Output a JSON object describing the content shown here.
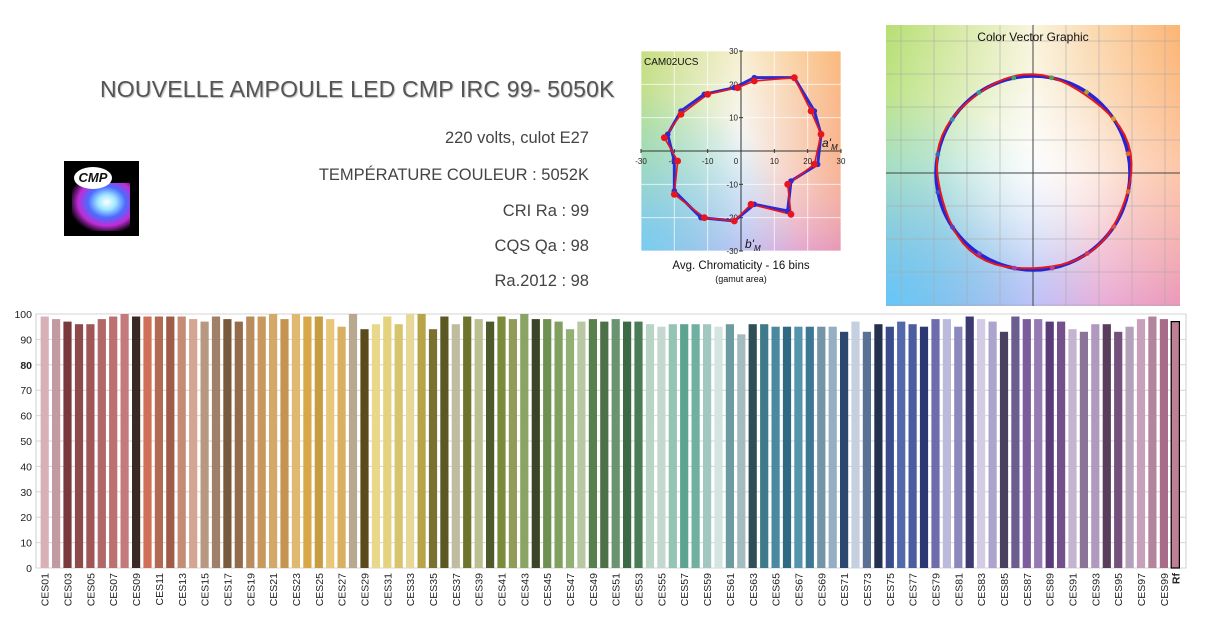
{
  "header": {
    "title": "NOUVELLE AMPOULE LED CMP IRC 99- 5050K",
    "logo_text": "CMP",
    "specs": [
      "220 volts, culot E27",
      "TEMPÉRATURE COULEUR : 5052K",
      "CRI Ra : 99",
      "CQS  Qa : 98",
      "Ra.2012 : 98"
    ]
  },
  "chromaticity": {
    "corner_label": "CAM02UCS",
    "caption": "Avg. Chromaticity - 16 bins",
    "subcaption": "(gamut area)",
    "a_label": "a'",
    "a_sub": "M",
    "b_label": "b'",
    "b_sub": "M",
    "xticks": [
      -30,
      -20,
      -10,
      0,
      10,
      20,
      30
    ],
    "yticks": [
      -30,
      -20,
      -10,
      10,
      20,
      30
    ],
    "range": [
      -30,
      30
    ],
    "test_color": "#e8141e",
    "reference_color": "#2b2bd0"
  },
  "vector": {
    "title": "Color Vector Graphic"
  },
  "chart_data": [
    {
      "type": "line",
      "title": "",
      "xlabel": "a'M",
      "ylabel": "b'M",
      "xlim": [
        -30,
        30
      ],
      "ylim": [
        -30,
        30
      ],
      "grid": true,
      "series": [
        {
          "x": [
            16,
            22,
            24,
            23,
            15,
            14,
            4,
            -2,
            -12,
            -20,
            -20,
            -22,
            -18,
            -11,
            -2,
            4
          ],
          "y": [
            22,
            12,
            5,
            -4,
            -9,
            -18,
            -16,
            -21,
            -20,
            -12,
            -3,
            5,
            12,
            17,
            19,
            22
          ]
        },
        {
          "x": [
            16,
            21,
            24,
            22,
            14,
            15,
            3,
            -2,
            -11,
            -20,
            -19,
            -23,
            -18,
            -10,
            -1,
            4
          ],
          "y": [
            22,
            12,
            5,
            -4,
            -10,
            -19,
            -16,
            -21,
            -20,
            -13,
            -3,
            4,
            11,
            17,
            19,
            21
          ]
        }
      ]
    },
    {
      "type": "bar",
      "ylim": [
        0,
        100
      ],
      "yticks": [
        0,
        10,
        20,
        30,
        40,
        50,
        60,
        70,
        80,
        90,
        100
      ],
      "grid": true,
      "categories": [
        "CES01",
        "CES02",
        "CES03",
        "CES04",
        "CES05",
        "CES06",
        "CES07",
        "CES08",
        "CES09",
        "CES10",
        "CES11",
        "CES12",
        "CES13",
        "CES14",
        "CES15",
        "CES16",
        "CES17",
        "CES18",
        "CES19",
        "CES20",
        "CES21",
        "CES22",
        "CES23",
        "CES24",
        "CES25",
        "CES26",
        "CES27",
        "CES28",
        "CES29",
        "CES30",
        "CES31",
        "CES32",
        "CES33",
        "CES34",
        "CES35",
        "CES36",
        "CES37",
        "CES38",
        "CES39",
        "CES40",
        "CES41",
        "CES42",
        "CES43",
        "CES44",
        "CES45",
        "CES46",
        "CES47",
        "CES48",
        "CES49",
        "CES50",
        "CES51",
        "CES52",
        "CES53",
        "CES54",
        "CES55",
        "CES56",
        "CES57",
        "CES58",
        "CES59",
        "CES60",
        "CES61",
        "CES62",
        "CES63",
        "CES64",
        "CES65",
        "CES66",
        "CES67",
        "CES68",
        "CES69",
        "CES70",
        "CES71",
        "CES72",
        "CES73",
        "CES74",
        "CES75",
        "CES76",
        "CES77",
        "CES78",
        "CES79",
        "CES80",
        "CES81",
        "CES82",
        "CES83",
        "CES84",
        "CES85",
        "CES86",
        "CES87",
        "CES88",
        "CES89",
        "CES90",
        "CES91",
        "CES92",
        "CES93",
        "CES94",
        "CES95",
        "CES96",
        "CES97",
        "CES98",
        "CES99",
        "Rf"
      ],
      "visible_tick_labels": [
        "CES01",
        "CES03",
        "CES05",
        "CES07",
        "CES09",
        "CES11",
        "CES13",
        "CES15",
        "CES17",
        "CES19",
        "CES21",
        "CES23",
        "CES25",
        "CES27",
        "CES29",
        "CES31",
        "CES33",
        "CES35",
        "CES37",
        "CES39",
        "CES41",
        "CES43",
        "CES45",
        "CES47",
        "CES49",
        "CES51",
        "CES53",
        "CES55",
        "CES57",
        "CES59",
        "CES61",
        "CES63",
        "CES65",
        "CES67",
        "CES69",
        "CES71",
        "CES73",
        "CES75",
        "CES77",
        "CES79",
        "CES81",
        "CES83",
        "CES85",
        "CES87",
        "CES89",
        "CES91",
        "CES93",
        "CES95",
        "CES97",
        "CES99",
        "Rf"
      ],
      "values": [
        99,
        98,
        97,
        96,
        96,
        98,
        99,
        100,
        99,
        99,
        99,
        99,
        99,
        98,
        97,
        99,
        98,
        97,
        99,
        99,
        100,
        98,
        100,
        99,
        99,
        98,
        95,
        100,
        94,
        96,
        99,
        96,
        100,
        100,
        94,
        99,
        96,
        99,
        98,
        97,
        99,
        98,
        100,
        98,
        98,
        97,
        94,
        97,
        98,
        97,
        98,
        97,
        97,
        96,
        95,
        96,
        96,
        96,
        96,
        95,
        96,
        92,
        96,
        96,
        95,
        95,
        95,
        95,
        95,
        95,
        93,
        97,
        93,
        96,
        95,
        97,
        96,
        95,
        98,
        98,
        95,
        99,
        98,
        97,
        93,
        99,
        98,
        98,
        97,
        97,
        94,
        93,
        96,
        96,
        93,
        95,
        98,
        99,
        98,
        97
      ],
      "colors": [
        "#d8b0b8",
        "#c49aa2",
        "#7a3a3c",
        "#8e4a4a",
        "#a05656",
        "#b06868",
        "#bc7070",
        "#c47a7a",
        "#3a2a26",
        "#d07058",
        "#b26a54",
        "#a05c48",
        "#c48c74",
        "#d4a590",
        "#b89880",
        "#a08068",
        "#7a5a3c",
        "#946c4c",
        "#b88c5c",
        "#c8985c",
        "#d4a868",
        "#c49450",
        "#e0b870",
        "#d8a848",
        "#c89c40",
        "#e8c878",
        "#d8b060",
        "#b8a890",
        "#5a4a1c",
        "#e8d88c",
        "#e4d27c",
        "#d8c46c",
        "#e8d898",
        "#b8a448",
        "#7a7030",
        "#5c5824",
        "#c0bca0",
        "#6e742c",
        "#bcc090",
        "#4e5a2c",
        "#7a8c3c",
        "#909c58",
        "#8aa464",
        "#3c4428",
        "#6e9050",
        "#80a060",
        "#92b074",
        "#b8c8a4",
        "#58804c",
        "#4c7048",
        "#6a9470",
        "#3c6a44",
        "#4a7c58",
        "#b8d4c4",
        "#c4d8d0",
        "#94c4b4",
        "#5ca490",
        "#70b0a0",
        "#a0c8c0",
        "#d4e4e0",
        "#6c9ca0",
        "#a4bcc0",
        "#2e4e58",
        "#3e7a8c",
        "#4a8aa0",
        "#2e6a84",
        "#5494ac",
        "#3c7894",
        "#7494a8",
        "#94aec4",
        "#2c4870",
        "#c4d0e0",
        "#5a7094",
        "#243050",
        "#3a4c8c",
        "#5468ac",
        "#4c5ca0",
        "#2c3874",
        "#6e6cac",
        "#bcbadc",
        "#8a88bc",
        "#3c3a70",
        "#d4cce4",
        "#aca4cc",
        "#4a4060",
        "#6c5c90",
        "#7c5c9c",
        "#967ab4",
        "#5a3a78",
        "#74508c",
        "#c4b4d0",
        "#8c7498",
        "#b098c0",
        "#5a3c5c",
        "#74507a",
        "#b4a0b8",
        "#c8a0bc",
        "#b4849c",
        "#a86c88",
        "#c08094",
        "#ffffff"
      ]
    }
  ]
}
